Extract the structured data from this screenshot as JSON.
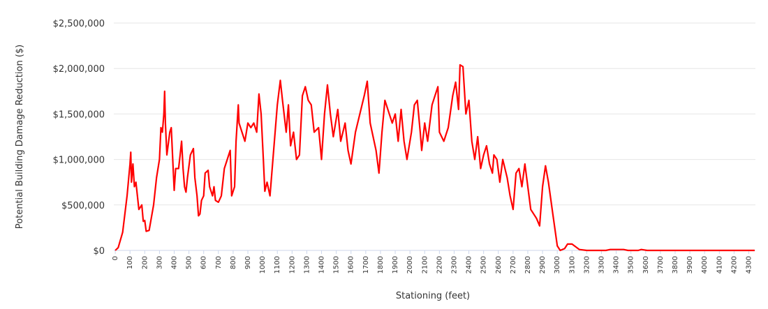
{
  "chart_data": {
    "type": "line",
    "x_label": "Stationing (feet)",
    "y_label": "Potential Building Damage Reduction ($)",
    "x": [
      0,
      20,
      50,
      80,
      100,
      105,
      110,
      120,
      130,
      140,
      150,
      160,
      180,
      190,
      200,
      210,
      230,
      260,
      280,
      300,
      310,
      320,
      330,
      335,
      340,
      350,
      370,
      380,
      390,
      400,
      410,
      430,
      440,
      450,
      460,
      470,
      480,
      490,
      510,
      530,
      540,
      555,
      565,
      575,
      585,
      600,
      610,
      630,
      640,
      660,
      670,
      680,
      700,
      720,
      740,
      760,
      780,
      790,
      810,
      820,
      835,
      840,
      860,
      880,
      900,
      920,
      940,
      960,
      975,
      990,
      1005,
      1015,
      1030,
      1050,
      1070,
      1080,
      1100,
      1120,
      1135,
      1160,
      1175,
      1190,
      1210,
      1230,
      1250,
      1270,
      1290,
      1310,
      1330,
      1350,
      1380,
      1400,
      1420,
      1440,
      1460,
      1480,
      1510,
      1530,
      1560,
      1580,
      1600,
      1630,
      1660,
      1690,
      1710,
      1730,
      1750,
      1770,
      1790,
      1810,
      1830,
      1860,
      1880,
      1900,
      1920,
      1940,
      1960,
      1980,
      2010,
      2030,
      2050,
      2070,
      2080,
      2100,
      2120,
      2150,
      2170,
      2190,
      2200,
      2230,
      2260,
      2290,
      2310,
      2330,
      2340,
      2360,
      2380,
      2400,
      2420,
      2440,
      2460,
      2480,
      2500,
      2520,
      2540,
      2560,
      2570,
      2590,
      2610,
      2630,
      2660,
      2680,
      2700,
      2720,
      2740,
      2760,
      2780,
      2800,
      2820,
      2840,
      2860,
      2880,
      2900,
      2920,
      2940,
      2970,
      3000,
      3020,
      3050,
      3070,
      3100,
      3150,
      3200,
      3330,
      3360,
      3450,
      3480,
      3550,
      3570,
      3610,
      4340
    ],
    "series": [
      {
        "name": "Potential Building Damage Reduction",
        "color": "#ff0000",
        "values": [
          0,
          30000,
          200000,
          600000,
          950000,
          1080000,
          750000,
          950000,
          700000,
          750000,
          600000,
          450000,
          500000,
          320000,
          330000,
          210000,
          220000,
          500000,
          800000,
          1000000,
          1350000,
          1300000,
          1500000,
          1750000,
          1400000,
          1050000,
          1300000,
          1350000,
          1000000,
          660000,
          900000,
          900000,
          1050000,
          1200000,
          900000,
          700000,
          640000,
          800000,
          1050000,
          1120000,
          800000,
          600000,
          380000,
          400000,
          550000,
          600000,
          850000,
          880000,
          700000,
          600000,
          700000,
          550000,
          530000,
          600000,
          900000,
          1000000,
          1100000,
          600000,
          700000,
          1200000,
          1600000,
          1400000,
          1300000,
          1200000,
          1400000,
          1350000,
          1400000,
          1300000,
          1720000,
          1500000,
          1000000,
          650000,
          750000,
          600000,
          1000000,
          1200000,
          1600000,
          1870000,
          1650000,
          1300000,
          1600000,
          1150000,
          1300000,
          1000000,
          1050000,
          1700000,
          1800000,
          1650000,
          1600000,
          1300000,
          1350000,
          1000000,
          1500000,
          1820000,
          1500000,
          1250000,
          1550000,
          1200000,
          1400000,
          1100000,
          950000,
          1300000,
          1500000,
          1700000,
          1860000,
          1400000,
          1250000,
          1100000,
          850000,
          1300000,
          1650000,
          1500000,
          1400000,
          1500000,
          1200000,
          1550000,
          1200000,
          1000000,
          1300000,
          1600000,
          1650000,
          1300000,
          1100000,
          1400000,
          1200000,
          1600000,
          1700000,
          1800000,
          1300000,
          1200000,
          1350000,
          1700000,
          1850000,
          1550000,
          2040000,
          2020000,
          1500000,
          1650000,
          1200000,
          1000000,
          1250000,
          900000,
          1050000,
          1150000,
          950000,
          850000,
          1050000,
          1000000,
          750000,
          1000000,
          800000,
          600000,
          450000,
          850000,
          900000,
          700000,
          950000,
          700000,
          450000,
          400000,
          350000,
          270000,
          700000,
          930000,
          750000,
          400000,
          50000,
          0,
          20000,
          70000,
          70000,
          10000,
          0,
          0,
          10000,
          10000,
          0,
          0,
          10000,
          0,
          0
        ]
      }
    ],
    "xlim": [
      -10,
      4345
    ],
    "ylim": [
      0,
      2500000
    ],
    "xticks": [
      0,
      100,
      200,
      300,
      400,
      500,
      600,
      700,
      800,
      900,
      1000,
      1100,
      1200,
      1300,
      1400,
      1500,
      1600,
      1700,
      1800,
      1900,
      2000,
      2100,
      2200,
      2300,
      2400,
      2500,
      2600,
      2700,
      2800,
      2900,
      3000,
      3100,
      3200,
      3300,
      3400,
      3500,
      3600,
      3700,
      3800,
      3900,
      4000,
      4100,
      4200,
      4300
    ],
    "yticks": [
      {
        "value": 0,
        "label": "$0"
      },
      {
        "value": 500000,
        "label": "$500,000"
      },
      {
        "value": 1000000,
        "label": "$1,000,000"
      },
      {
        "value": 1500000,
        "label": "$1,500,000"
      },
      {
        "value": 2000000,
        "label": "$2,000,000"
      },
      {
        "value": 2500000,
        "label": "$2,500,000"
      }
    ],
    "grid": true
  }
}
